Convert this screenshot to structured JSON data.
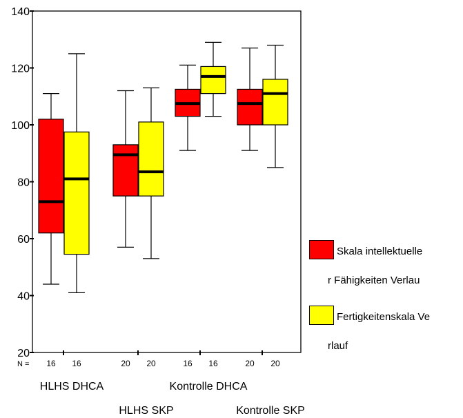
{
  "chart_data": {
    "type": "boxplot",
    "title": "",
    "xlabel": "",
    "ylabel": "",
    "ylim": [
      20,
      140
    ],
    "yticks": [
      20,
      40,
      60,
      80,
      100,
      120,
      140
    ],
    "grid": false,
    "legend_position": "right",
    "n_label": "N =",
    "groups": [
      {
        "label": "HLHS DHCA",
        "label_row": 1
      },
      {
        "label": "HLHS SKP",
        "label_row": 2
      },
      {
        "label": "Kontrolle DHCA",
        "label_row": 1
      },
      {
        "label": "Kontrolle SKP",
        "label_row": 2
      }
    ],
    "series": [
      {
        "legend_line1": "Skala intellektuelle",
        "legend_line2": "r Fähigkeiten Verlau",
        "color": "#ff0000",
        "boxes": [
          {
            "n": "16",
            "min": 44,
            "q1": 62,
            "median": 73,
            "q3": 102,
            "max": 111
          },
          {
            "n": "20",
            "min": 57,
            "q1": 75,
            "median": 89.5,
            "q3": 93,
            "max": 112
          },
          {
            "n": "16",
            "min": 91,
            "q1": 103,
            "median": 107.5,
            "q3": 112.5,
            "max": 121
          },
          {
            "n": "20",
            "min": 91,
            "q1": 100,
            "median": 107.5,
            "q3": 112.5,
            "max": 127
          }
        ]
      },
      {
        "legend_line1": "Fertigkeitenskala Ve",
        "legend_line2": "rlauf",
        "color": "#ffff00",
        "boxes": [
          {
            "n": "16",
            "min": 41,
            "q1": 54.5,
            "median": 81,
            "q3": 97.5,
            "max": 125
          },
          {
            "n": "20",
            "min": 53,
            "q1": 75,
            "median": 83.5,
            "q3": 101,
            "max": 113
          },
          {
            "n": "16",
            "min": 103,
            "q1": 111,
            "median": 117,
            "q3": 120.5,
            "max": 129
          },
          {
            "n": "20",
            "min": 85,
            "q1": 100,
            "median": 111,
            "q3": 116,
            "max": 128
          }
        ]
      }
    ]
  }
}
